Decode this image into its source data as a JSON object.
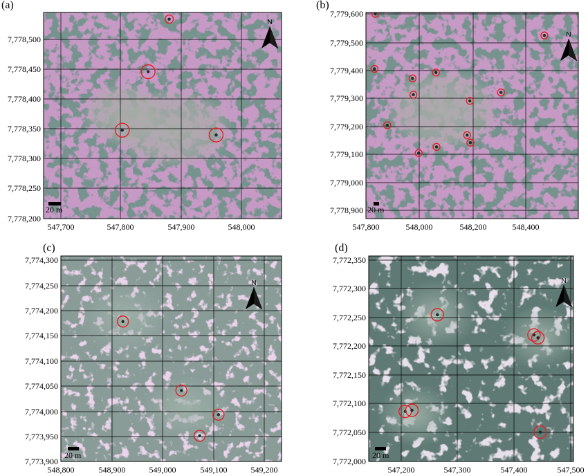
{
  "figure": {
    "panels": [
      {
        "id": "a",
        "label": "(a)",
        "imagery": "pink",
        "y_labels": [
          "7,778,500",
          "7,778,450",
          "7,778,400",
          "7,778,350",
          "7,778,300",
          "7,778,250",
          "7,778,200"
        ],
        "x_labels": [
          "547,700",
          "547,800",
          "547,900",
          "548,000"
        ],
        "scale_label": "20 m",
        "north_label": "N",
        "markers": [
          {
            "x": 547845,
            "y": 7778446,
            "size": "large"
          },
          {
            "x": 547802,
            "y": 7778348,
            "size": "large"
          },
          {
            "x": 547958,
            "y": 7778340,
            "size": "large"
          },
          {
            "x": 547880,
            "y": 7778534,
            "size": "small"
          }
        ]
      },
      {
        "id": "b",
        "label": "(b)",
        "imagery": "pink",
        "y_labels": [
          "7,779,600",
          "7,779,500",
          "7,779,400",
          "7,779,300",
          "7,779,200",
          "7,779,100",
          "7,779,000",
          "7,778,900"
        ],
        "x_labels": [
          "547,800",
          "548,000",
          "548,200",
          "548,400"
        ],
        "scale_label": "20 m",
        "north_label": "N",
        "markers": [
          {
            "x": 548470,
            "y": 7779523
          },
          {
            "x": 547832,
            "y": 7779404
          },
          {
            "x": 548063,
            "y": 7779391
          },
          {
            "x": 547975,
            "y": 7779370
          },
          {
            "x": 547978,
            "y": 7779312
          },
          {
            "x": 548307,
            "y": 7779320
          },
          {
            "x": 548190,
            "y": 7779290
          },
          {
            "x": 547880,
            "y": 7779203
          },
          {
            "x": 548180,
            "y": 7779168
          },
          {
            "x": 548192,
            "y": 7779141
          },
          {
            "x": 548065,
            "y": 7779126
          },
          {
            "x": 547998,
            "y": 7779104
          },
          {
            "x": 547835,
            "y": 7779600
          }
        ]
      },
      {
        "id": "c",
        "label": "(c)",
        "imagery": "mixed",
        "y_labels": [
          "7,774,300",
          "7,774,250",
          "7,774,200",
          "7,774,150",
          "7,774,100",
          "7,774,050",
          "7,774,000",
          "7,773,950",
          "7,773,900"
        ],
        "x_labels": [
          "548,800",
          "548,900",
          "549,000",
          "549,100",
          "549,200"
        ],
        "scale_label": "20 m",
        "north_label": "N",
        "markers": [
          {
            "x": 548922,
            "y": 7774178
          },
          {
            "x": 549037,
            "y": 7774041
          },
          {
            "x": 549110,
            "y": 7773993
          },
          {
            "x": 549073,
            "y": 7773951
          }
        ]
      },
      {
        "id": "d",
        "label": "(d)",
        "imagery": "dark",
        "y_labels": [
          "7,772,350",
          "7,772,300",
          "7,772,250",
          "7,772,200",
          "7,772,150",
          "7,772,100",
          "7,772,050",
          "7,772,000"
        ],
        "x_labels": [
          "547,200",
          "547,300",
          "547,400",
          "547,500"
        ],
        "scale_label": "20 m",
        "north_label": "N",
        "markers": [
          {
            "x": 547264,
            "y": 7772255
          },
          {
            "x": 547435,
            "y": 7772220
          },
          {
            "x": 547442,
            "y": 7772215
          },
          {
            "x": 547207,
            "y": 7772087
          },
          {
            "x": 547219,
            "y": 7772089
          },
          {
            "x": 547446,
            "y": 7772051
          }
        ]
      }
    ],
    "colors": {
      "pink_base": "#c79ac6",
      "pink_light": "#d8a8d6",
      "mixed_base": "#8a9c98",
      "dark_base": "#5f7a74",
      "veg_dark": "#2f4944",
      "clearing": "#a7aea9",
      "marker": "#e21f26",
      "grid": "#000000"
    }
  }
}
